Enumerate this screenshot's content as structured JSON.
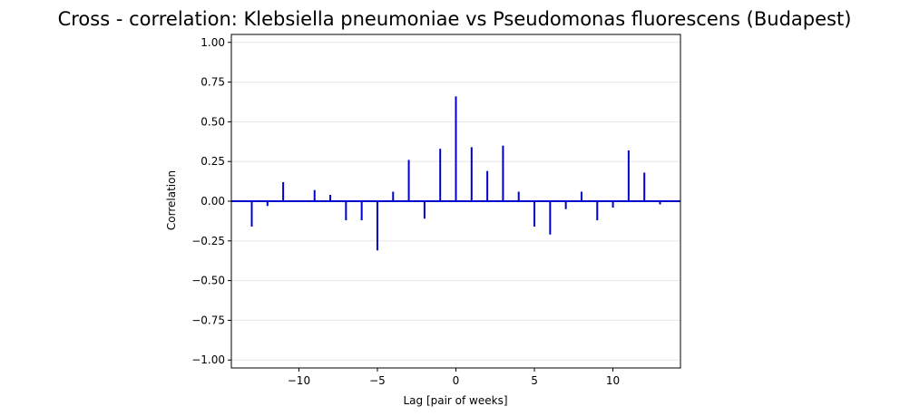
{
  "chart_data": {
    "type": "bar",
    "title": "Cross - correlation: Klebsiella pneumoniae vs Pseudomonas fluorescens (Budapest)",
    "xlabel": "Lag [pair of weeks]",
    "ylabel": "Correlation",
    "xlim": [
      -14.3,
      14.3
    ],
    "ylim": [
      -1.05,
      1.05
    ],
    "xticks": [
      -10,
      -5,
      0,
      5,
      10
    ],
    "xtick_labels": [
      "−10",
      "−5",
      "0",
      "5",
      "10"
    ],
    "yticks": [
      -1.0,
      -0.75,
      -0.5,
      -0.25,
      0.0,
      0.25,
      0.5,
      0.75,
      1.0
    ],
    "ytick_labels": [
      "−1.00",
      "−0.75",
      "−0.50",
      "−0.25",
      "0.00",
      "0.25",
      "0.50",
      "0.75",
      "1.00"
    ],
    "grid": "horizontal",
    "line_color": "#0000cc",
    "x": [
      -13,
      -12,
      -11,
      -10,
      -9,
      -8,
      -7,
      -6,
      -5,
      -4,
      -3,
      -2,
      -1,
      0,
      1,
      2,
      3,
      4,
      5,
      6,
      7,
      8,
      9,
      10,
      11,
      12,
      13
    ],
    "values": [
      -0.16,
      -0.03,
      0.12,
      0.0,
      0.07,
      0.04,
      -0.12,
      -0.12,
      -0.31,
      0.06,
      0.26,
      -0.11,
      0.33,
      0.66,
      0.34,
      0.19,
      0.35,
      0.06,
      -0.16,
      -0.21,
      -0.05,
      0.06,
      -0.12,
      -0.04,
      0.32,
      0.18,
      -0.02
    ]
  }
}
